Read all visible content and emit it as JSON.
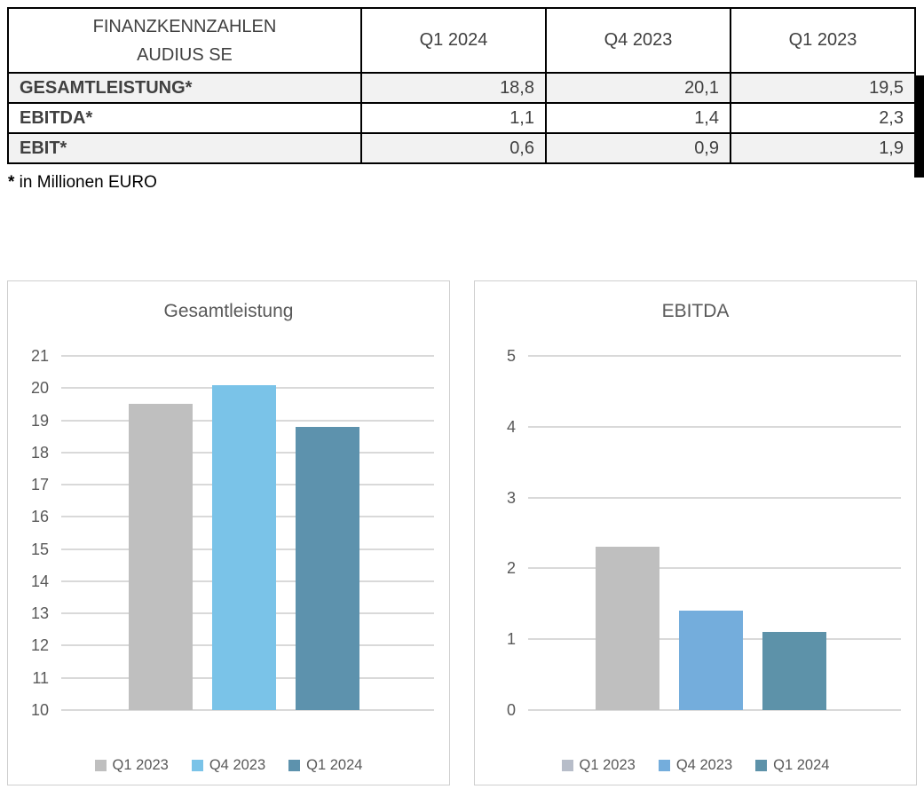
{
  "table": {
    "header": {
      "title_line1": "FINANZKENNZAHLEN",
      "title_line2": "AUDIUS SE",
      "columns": [
        "Q1 2024",
        "Q4 2023",
        "Q1 2023"
      ]
    },
    "rows": [
      {
        "label": "GESAMTLEISTUNG*",
        "values": [
          "18,8",
          "20,1",
          "19,5"
        ]
      },
      {
        "label": "EBITDA*",
        "values": [
          "1,1",
          "1,4",
          "2,3"
        ]
      },
      {
        "label": "EBIT*",
        "values": [
          "0,6",
          "0,9",
          "1,9"
        ]
      }
    ],
    "footnote_marker": "*",
    "footnote_text": " in Millionen EURO"
  },
  "colors": {
    "table_border": "#000000",
    "table_row_shade": "#f2f2f2",
    "grid": "#d9d9d9",
    "axis_text": "#595959",
    "title_text": "#595959"
  },
  "chart_data": [
    {
      "type": "bar",
      "title": "Gesamtleistung",
      "categories": [
        "Q1 2023",
        "Q4 2023",
        "Q1 2024"
      ],
      "values": [
        19.5,
        20.1,
        18.8
      ],
      "ylim": [
        10,
        21
      ],
      "ytick_step": 1,
      "grid": true,
      "legend_position": "bottom",
      "bar_colors": [
        "#bfbfbf",
        "#7ac3e8",
        "#5d92ad"
      ],
      "legend_swatch_colors": [
        "#bfbfbf",
        "#7ac3e8",
        "#5d92ad"
      ]
    },
    {
      "type": "bar",
      "title": "EBITDA",
      "categories": [
        "Q1 2023",
        "Q4 2023",
        "Q1 2024"
      ],
      "values": [
        2.3,
        1.4,
        1.1
      ],
      "ylim": [
        0,
        5
      ],
      "ytick_step": 1,
      "grid": true,
      "legend_position": "bottom",
      "bar_colors": [
        "#bfbfbf",
        "#74addc",
        "#5d92a9"
      ],
      "legend_swatch_colors": [
        "#b7bdc9",
        "#74addc",
        "#5d92a9"
      ]
    }
  ]
}
